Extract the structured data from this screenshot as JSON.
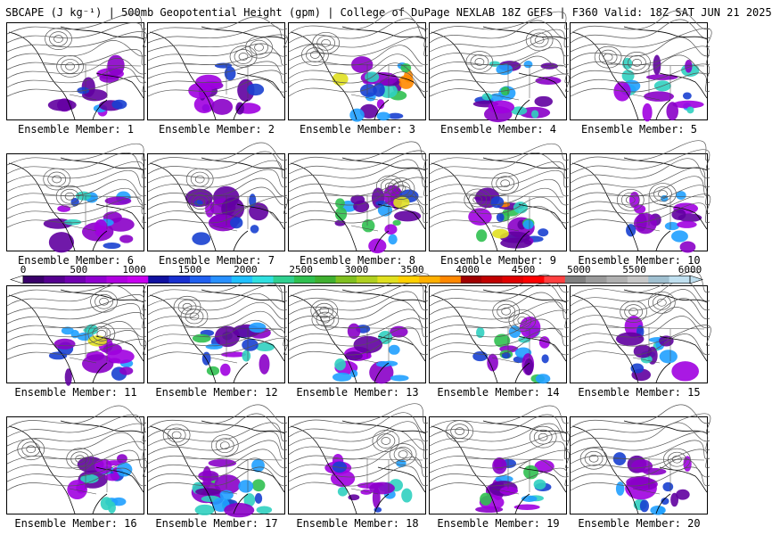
{
  "header": {
    "title": "SBCAPE (J kg⁻¹) | 500mb Geopotential Height (gpm) | College of DuPage NEXLAB 18Z GEFS | F360 Valid: 18Z SAT JUN 21 2025"
  },
  "members": [
    {
      "label": "Ensemble Member: 1",
      "ridge": 0.35,
      "hot": 0.2
    },
    {
      "label": "Ensemble Member: 2",
      "ridge": 0.2,
      "hot": 0.3
    },
    {
      "label": "Ensemble Member: 3",
      "ridge": 0.55,
      "hot": 0.9
    },
    {
      "label": "Ensemble Member: 4",
      "ridge": 0.45,
      "hot": 0.6
    },
    {
      "label": "Ensemble Member: 5",
      "ridge": 0.5,
      "hot": 0.5
    },
    {
      "label": "Ensemble Member: 6",
      "ridge": 0.4,
      "hot": 0.5
    },
    {
      "label": "Ensemble Member: 7",
      "ridge": 0.45,
      "hot": 0.3
    },
    {
      "label": "Ensemble Member: 8",
      "ridge": 0.5,
      "hot": 0.7
    },
    {
      "label": "Ensemble Member: 9",
      "ridge": 0.4,
      "hot": 0.9
    },
    {
      "label": "Ensemble Member: 10",
      "ridge": 0.55,
      "hot": 0.4
    },
    {
      "label": "Ensemble Member: 11",
      "ridge": 0.35,
      "hot": 0.7
    },
    {
      "label": "Ensemble Member: 12",
      "ridge": 0.4,
      "hot": 0.6
    },
    {
      "label": "Ensemble Member: 13",
      "ridge": 0.5,
      "hot": 0.5
    },
    {
      "label": "Ensemble Member: 14",
      "ridge": 0.45,
      "hot": 0.7
    },
    {
      "label": "Ensemble Member: 15",
      "ridge": 0.6,
      "hot": 0.4
    },
    {
      "label": "Ensemble Member: 16",
      "ridge": 0.45,
      "hot": 0.5
    },
    {
      "label": "Ensemble Member: 17",
      "ridge": 0.5,
      "hot": 0.9
    },
    {
      "label": "Ensemble Member: 18",
      "ridge": 0.55,
      "hot": 0.5
    },
    {
      "label": "Ensemble Member: 19",
      "ridge": 0.45,
      "hot": 0.6
    },
    {
      "label": "Ensemble Member: 20",
      "ridge": 0.5,
      "hot": 0.5
    }
  ],
  "colorbar": {
    "min": 0,
    "max": 6000,
    "ticks": [
      "0",
      "500",
      "1000",
      "1500",
      "2000",
      "2500",
      "3000",
      "3500",
      "4000",
      "4500",
      "5000",
      "5500",
      "6000"
    ],
    "colors": [
      "#3a006a",
      "#55008f",
      "#7000b0",
      "#9000d0",
      "#b000e0",
      "#c800f0",
      "#1010a0",
      "#1830d0",
      "#2060f0",
      "#2890ff",
      "#20c0ff",
      "#30e0e0",
      "#30d090",
      "#30c050",
      "#40b030",
      "#80c020",
      "#b0d020",
      "#e0e020",
      "#ffd000",
      "#ffb000",
      "#ff8800",
      "#a00000",
      "#c00000",
      "#e00000",
      "#ff0000",
      "#ff4040",
      "#808080",
      "#9a9a9a",
      "#b0b0b0",
      "#c8c8c8",
      "#a0c0d0",
      "#c0e0f0"
    ]
  }
}
